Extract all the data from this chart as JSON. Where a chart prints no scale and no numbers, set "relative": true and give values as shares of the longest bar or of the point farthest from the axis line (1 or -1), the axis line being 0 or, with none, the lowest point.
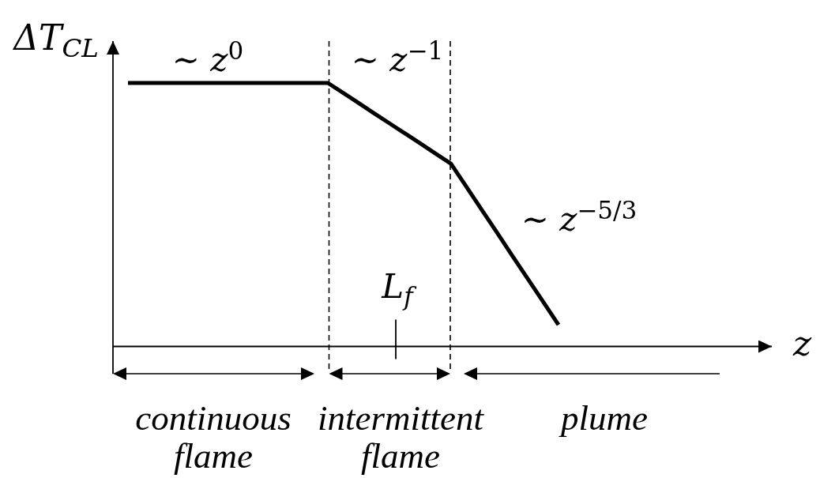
{
  "chart_data": {
    "type": "line",
    "ylabel": "ΔT$_{CL}$",
    "relative": true,
    "categories": [
      null,
      null,
      null,
      null,
      null,
      null,
      null,
      null,
      null,
      null,
      null,
      null,
      null,
      null,
      null,
      null,
      null,
      null,
      null,
      null,
      null,
      null,
      null,
      null,
      null,
      null,
      null,
      null,
      null
    ],
    "series": [
      {
        "color": "#000000",
        "values": [
          1,
          1,
          1,
          1,
          1,
          1,
          1,
          1,
          1,
          1,
          1,
          1,
          1,
          1,
          0.962,
          0.924,
          0.885,
          0.847,
          0.809,
          0.771,
          0.732,
          0.694,
          0.607,
          0.519,
          0.432,
          0.344,
          0.257,
          0.17,
          0.082
        ]
      }
    ],
    "annotations": [
      "∼ z$^{0}$",
      "∼ z$^{−1}$",
      "∼ z$^{−5/3}$",
      "L$_{f}$",
      "z",
      "continuous flame",
      "intermittent flame",
      "plume"
    ]
  }
}
